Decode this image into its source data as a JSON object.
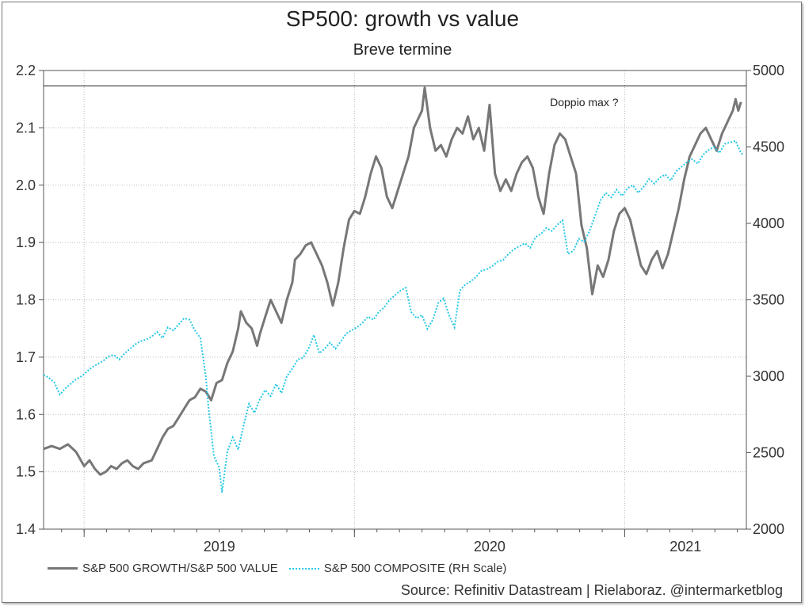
{
  "title": "SP500: growth vs value",
  "subtitle": "Breve termine",
  "source": "Source: Refinitiv Datastream | Rielaboraz. @intermarketblog",
  "colors": {
    "ratio": "#777777",
    "composite": "#27c8e6",
    "grid": "#bbbbbb",
    "axis": "#555555"
  },
  "chart_data": {
    "type": "line",
    "title": "SP500: growth vs value",
    "subtitle": "Breve termine",
    "grid": true,
    "legend_position": "bottom-left",
    "x_ticks": [
      "2019",
      "2020",
      "2021"
    ],
    "x_range": [
      2018.85,
      2021.45
    ],
    "y_left": {
      "range": [
        1.4,
        2.2
      ],
      "ticks": [
        "1.4",
        "1.5",
        "1.6",
        "1.7",
        "1.8",
        "1.9",
        "2.0",
        "2.1",
        "2.2"
      ]
    },
    "y_right": {
      "range": [
        2000,
        5000
      ],
      "ticks": [
        "2000",
        "2500",
        "3000",
        "3500",
        "4000",
        "4500",
        "5000"
      ]
    },
    "annotations": [
      {
        "text": "Doppio max ?",
        "x": 2020.85,
        "y": 2.138
      }
    ],
    "reference_lines": [
      {
        "axis": "y_left",
        "value": 2.173
      }
    ],
    "series": [
      {
        "name": "S&P 500 GROWTH/S&P 500 VALUE",
        "axis": "left",
        "style": "solid",
        "points": [
          [
            2018.85,
            1.54
          ],
          [
            2018.88,
            1.545
          ],
          [
            2018.91,
            1.54
          ],
          [
            2018.94,
            1.548
          ],
          [
            2018.97,
            1.535
          ],
          [
            2019.0,
            1.51
          ],
          [
            2019.02,
            1.52
          ],
          [
            2019.04,
            1.505
          ],
          [
            2019.06,
            1.495
          ],
          [
            2019.08,
            1.5
          ],
          [
            2019.1,
            1.51
          ],
          [
            2019.12,
            1.505
          ],
          [
            2019.14,
            1.515
          ],
          [
            2019.16,
            1.52
          ],
          [
            2019.18,
            1.51
          ],
          [
            2019.2,
            1.505
          ],
          [
            2019.22,
            1.515
          ],
          [
            2019.25,
            1.52
          ],
          [
            2019.27,
            1.54
          ],
          [
            2019.29,
            1.56
          ],
          [
            2019.31,
            1.575
          ],
          [
            2019.33,
            1.58
          ],
          [
            2019.35,
            1.595
          ],
          [
            2019.37,
            1.61
          ],
          [
            2019.39,
            1.625
          ],
          [
            2019.41,
            1.63
          ],
          [
            2019.43,
            1.645
          ],
          [
            2019.45,
            1.64
          ],
          [
            2019.47,
            1.625
          ],
          [
            2019.49,
            1.655
          ],
          [
            2019.51,
            1.66
          ],
          [
            2019.53,
            1.69
          ],
          [
            2019.55,
            1.71
          ],
          [
            2019.57,
            1.75
          ],
          [
            2019.58,
            1.78
          ],
          [
            2019.6,
            1.76
          ],
          [
            2019.62,
            1.75
          ],
          [
            2019.64,
            1.72
          ],
          [
            2019.65,
            1.74
          ],
          [
            2019.67,
            1.77
          ],
          [
            2019.69,
            1.8
          ],
          [
            2019.71,
            1.78
          ],
          [
            2019.73,
            1.76
          ],
          [
            2019.75,
            1.8
          ],
          [
            2019.77,
            1.83
          ],
          [
            2019.78,
            1.87
          ],
          [
            2019.8,
            1.88
          ],
          [
            2019.82,
            1.895
          ],
          [
            2019.84,
            1.9
          ],
          [
            2019.86,
            1.88
          ],
          [
            2019.88,
            1.86
          ],
          [
            2019.9,
            1.83
          ],
          [
            2019.92,
            1.79
          ],
          [
            2019.94,
            1.83
          ],
          [
            2019.96,
            1.89
          ],
          [
            2019.98,
            1.94
          ],
          [
            2020.0,
            1.955
          ],
          [
            2020.02,
            1.95
          ],
          [
            2020.04,
            1.98
          ],
          [
            2020.06,
            2.02
          ],
          [
            2020.08,
            2.05
          ],
          [
            2020.1,
            2.03
          ],
          [
            2020.12,
            1.98
          ],
          [
            2020.14,
            1.96
          ],
          [
            2020.16,
            1.99
          ],
          [
            2020.18,
            2.02
          ],
          [
            2020.2,
            2.05
          ],
          [
            2020.22,
            2.1
          ],
          [
            2020.23,
            2.11
          ],
          [
            2020.25,
            2.13
          ],
          [
            2020.26,
            2.17
          ],
          [
            2020.28,
            2.1
          ],
          [
            2020.3,
            2.06
          ],
          [
            2020.32,
            2.07
          ],
          [
            2020.34,
            2.05
          ],
          [
            2020.36,
            2.08
          ],
          [
            2020.38,
            2.1
          ],
          [
            2020.4,
            2.09
          ],
          [
            2020.42,
            2.12
          ],
          [
            2020.44,
            2.08
          ],
          [
            2020.46,
            2.1
          ],
          [
            2020.48,
            2.06
          ],
          [
            2020.5,
            2.14
          ],
          [
            2020.52,
            2.02
          ],
          [
            2020.54,
            1.99
          ],
          [
            2020.56,
            2.01
          ],
          [
            2020.58,
            1.99
          ],
          [
            2020.6,
            2.02
          ],
          [
            2020.62,
            2.04
          ],
          [
            2020.64,
            2.05
          ],
          [
            2020.66,
            2.03
          ],
          [
            2020.68,
            1.98
          ],
          [
            2020.7,
            1.95
          ],
          [
            2020.72,
            2.02
          ],
          [
            2020.74,
            2.07
          ],
          [
            2020.76,
            2.09
          ],
          [
            2020.78,
            2.08
          ],
          [
            2020.8,
            2.05
          ],
          [
            2020.82,
            2.02
          ],
          [
            2020.84,
            1.93
          ],
          [
            2020.86,
            1.89
          ],
          [
            2020.88,
            1.81
          ],
          [
            2020.9,
            1.86
          ],
          [
            2020.92,
            1.84
          ],
          [
            2020.94,
            1.87
          ],
          [
            2020.96,
            1.92
          ],
          [
            2020.98,
            1.95
          ],
          [
            2021.0,
            1.96
          ],
          [
            2021.02,
            1.94
          ],
          [
            2021.04,
            1.9
          ],
          [
            2021.06,
            1.86
          ],
          [
            2021.08,
            1.845
          ],
          [
            2021.1,
            1.87
          ],
          [
            2021.12,
            1.885
          ],
          [
            2021.14,
            1.855
          ],
          [
            2021.16,
            1.88
          ],
          [
            2021.18,
            1.92
          ],
          [
            2021.2,
            1.96
          ],
          [
            2021.22,
            2.01
          ],
          [
            2021.24,
            2.05
          ],
          [
            2021.26,
            2.07
          ],
          [
            2021.28,
            2.09
          ],
          [
            2021.3,
            2.1
          ],
          [
            2021.32,
            2.08
          ],
          [
            2021.34,
            2.06
          ],
          [
            2021.36,
            2.09
          ],
          [
            2021.38,
            2.11
          ],
          [
            2021.4,
            2.13
          ],
          [
            2021.41,
            2.15
          ],
          [
            2021.42,
            2.13
          ],
          [
            2021.43,
            2.145
          ]
        ]
      },
      {
        "name": "S&P 500 COMPOSITE (RH Scale)",
        "axis": "right",
        "style": "dotted",
        "points": [
          [
            2018.85,
            3010
          ],
          [
            2018.87,
            2990
          ],
          [
            2018.89,
            2960
          ],
          [
            2018.91,
            2880
          ],
          [
            2018.93,
            2920
          ],
          [
            2018.95,
            2950
          ],
          [
            2018.97,
            2980
          ],
          [
            2018.99,
            3000
          ],
          [
            2019.01,
            3030
          ],
          [
            2019.03,
            3060
          ],
          [
            2019.05,
            3080
          ],
          [
            2019.07,
            3100
          ],
          [
            2019.09,
            3130
          ],
          [
            2019.11,
            3140
          ],
          [
            2019.13,
            3110
          ],
          [
            2019.15,
            3150
          ],
          [
            2019.17,
            3180
          ],
          [
            2019.19,
            3210
          ],
          [
            2019.21,
            3230
          ],
          [
            2019.23,
            3240
          ],
          [
            2019.25,
            3260
          ],
          [
            2019.27,
            3290
          ],
          [
            2019.29,
            3250
          ],
          [
            2019.31,
            3320
          ],
          [
            2019.33,
            3300
          ],
          [
            2019.35,
            3340
          ],
          [
            2019.37,
            3380
          ],
          [
            2019.39,
            3370
          ],
          [
            2019.41,
            3300
          ],
          [
            2019.43,
            3250
          ],
          [
            2019.45,
            3000
          ],
          [
            2019.46,
            2800
          ],
          [
            2019.48,
            2480
          ],
          [
            2019.5,
            2400
          ],
          [
            2019.51,
            2240
          ],
          [
            2019.53,
            2510
          ],
          [
            2019.55,
            2600
          ],
          [
            2019.57,
            2520
          ],
          [
            2019.59,
            2680
          ],
          [
            2019.61,
            2820
          ],
          [
            2019.63,
            2760
          ],
          [
            2019.65,
            2850
          ],
          [
            2019.67,
            2910
          ],
          [
            2019.69,
            2870
          ],
          [
            2019.71,
            2950
          ],
          [
            2019.73,
            2890
          ],
          [
            2019.75,
            3000
          ],
          [
            2019.77,
            3050
          ],
          [
            2019.79,
            3110
          ],
          [
            2019.81,
            3120
          ],
          [
            2019.83,
            3180
          ],
          [
            2019.85,
            3270
          ],
          [
            2019.87,
            3150
          ],
          [
            2019.89,
            3180
          ],
          [
            2019.91,
            3220
          ],
          [
            2019.93,
            3180
          ],
          [
            2019.95,
            3230
          ],
          [
            2019.97,
            3280
          ],
          [
            2019.99,
            3300
          ],
          [
            2020.01,
            3320
          ],
          [
            2020.03,
            3350
          ],
          [
            2020.05,
            3390
          ],
          [
            2020.07,
            3370
          ],
          [
            2020.09,
            3420
          ],
          [
            2020.11,
            3450
          ],
          [
            2020.13,
            3500
          ],
          [
            2020.15,
            3530
          ],
          [
            2020.17,
            3560
          ],
          [
            2020.19,
            3580
          ],
          [
            2020.21,
            3420
          ],
          [
            2020.23,
            3380
          ],
          [
            2020.25,
            3400
          ],
          [
            2020.27,
            3310
          ],
          [
            2020.29,
            3370
          ],
          [
            2020.31,
            3480
          ],
          [
            2020.33,
            3510
          ],
          [
            2020.35,
            3400
          ],
          [
            2020.37,
            3320
          ],
          [
            2020.39,
            3560
          ],
          [
            2020.41,
            3600
          ],
          [
            2020.43,
            3620
          ],
          [
            2020.45,
            3650
          ],
          [
            2020.47,
            3690
          ],
          [
            2020.49,
            3700
          ],
          [
            2020.51,
            3720
          ],
          [
            2020.53,
            3750
          ],
          [
            2020.55,
            3760
          ],
          [
            2020.57,
            3800
          ],
          [
            2020.59,
            3830
          ],
          [
            2020.61,
            3850
          ],
          [
            2020.63,
            3870
          ],
          [
            2020.65,
            3840
          ],
          [
            2020.67,
            3910
          ],
          [
            2020.69,
            3930
          ],
          [
            2020.71,
            3970
          ],
          [
            2020.73,
            3950
          ],
          [
            2020.75,
            3990
          ],
          [
            2020.77,
            4020
          ],
          [
            2020.79,
            3800
          ],
          [
            2020.81,
            3820
          ],
          [
            2020.83,
            3900
          ],
          [
            2020.85,
            3880
          ],
          [
            2020.87,
            3950
          ],
          [
            2020.89,
            4050
          ],
          [
            2020.91,
            4150
          ],
          [
            2020.93,
            4200
          ],
          [
            2020.95,
            4170
          ],
          [
            2020.97,
            4220
          ],
          [
            2020.99,
            4180
          ],
          [
            2021.01,
            4230
          ],
          [
            2021.03,
            4250
          ],
          [
            2021.05,
            4200
          ],
          [
            2021.07,
            4240
          ],
          [
            2021.09,
            4290
          ],
          [
            2021.11,
            4260
          ],
          [
            2021.13,
            4300
          ],
          [
            2021.15,
            4320
          ],
          [
            2021.17,
            4280
          ],
          [
            2021.19,
            4340
          ],
          [
            2021.21,
            4370
          ],
          [
            2021.23,
            4400
          ],
          [
            2021.25,
            4420
          ],
          [
            2021.27,
            4390
          ],
          [
            2021.29,
            4450
          ],
          [
            2021.31,
            4480
          ],
          [
            2021.33,
            4500
          ],
          [
            2021.35,
            4460
          ],
          [
            2021.37,
            4520
          ],
          [
            2021.39,
            4530
          ],
          [
            2021.41,
            4540
          ],
          [
            2021.42,
            4500
          ],
          [
            2021.43,
            4460
          ],
          [
            2021.44,
            4450
          ]
        ]
      }
    ]
  },
  "legend": {
    "ratio_label": "S&P 500 GROWTH/S&P 500 VALUE",
    "composite_label": "S&P 500 COMPOSITE (RH Scale)"
  }
}
